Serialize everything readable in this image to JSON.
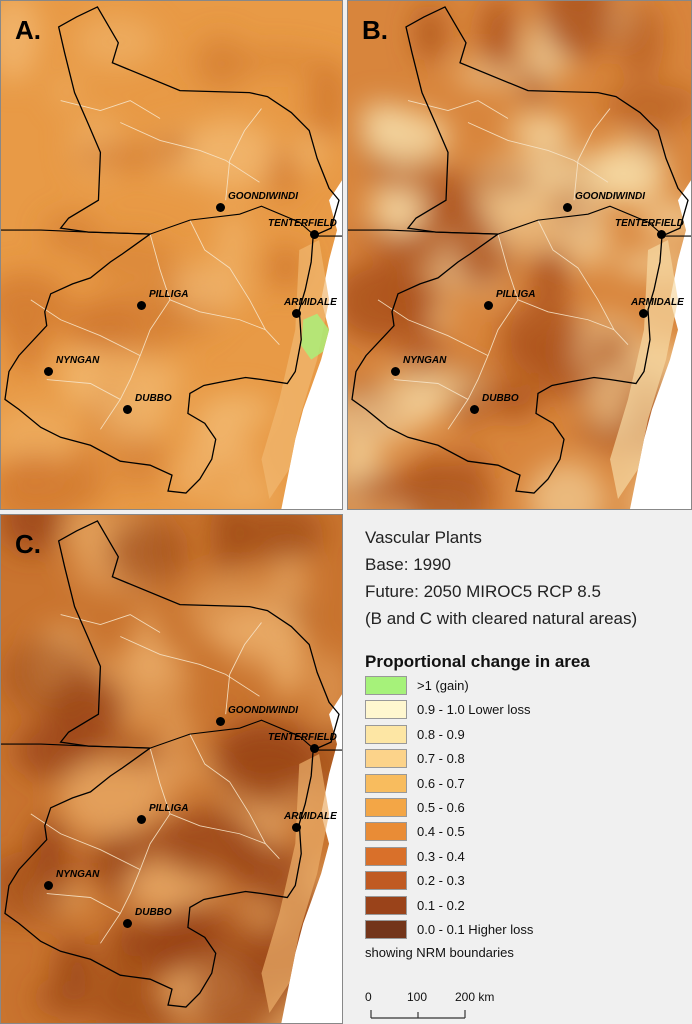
{
  "panels": {
    "a": {
      "letter": "A.",
      "map": "base",
      "colors": {
        "base": "#e89a46",
        "dark": "#d17a30",
        "light": "#f1b870"
      }
    },
    "b": {
      "letter": "B.",
      "map": "future",
      "colors": {
        "base": "#d8853c",
        "dark": "#a94f19",
        "light": "#f6d8a2"
      }
    },
    "c": {
      "letter": "C.",
      "map": "future",
      "colors": {
        "base": "#c9742f",
        "dark": "#9a4515",
        "light": "#ebae6a"
      }
    }
  },
  "towns": [
    {
      "id": "goondiwindi",
      "name": "GOONDIWINDI"
    },
    {
      "id": "tenterfield",
      "name": "TENTERFIELD"
    },
    {
      "id": "pilliga",
      "name": "PILLIGA"
    },
    {
      "id": "armidale",
      "name": "ARMIDALE"
    },
    {
      "id": "nyngan",
      "name": "NYNGAN"
    },
    {
      "id": "dubbo",
      "name": "DUBBO"
    }
  ],
  "info": {
    "line1": "Vascular Plants",
    "line2": "Base: 1990",
    "line3": "Future: 2050 MIROC5 RCP 8.5",
    "line4": "(B and C with cleared natural areas)"
  },
  "legend": {
    "title": "Proportional change in area",
    "items": [
      {
        "label": ">1 (gain)",
        "color": "#a6f27a"
      },
      {
        "label": "0.9 - 1.0 Lower loss",
        "color": "#fff7cf"
      },
      {
        "label": "0.8 - 0.9",
        "color": "#fde6a4"
      },
      {
        "label": "0.7 - 0.8",
        "color": "#fcd38a"
      },
      {
        "label": "0.6 - 0.7",
        "color": "#f8bc5e"
      },
      {
        "label": "0.5 - 0.6",
        "color": "#f3a646"
      },
      {
        "label": "0.4 - 0.5",
        "color": "#e98c36"
      },
      {
        "label": "0.3 - 0.4",
        "color": "#d9702a"
      },
      {
        "label": "0.2 - 0.3",
        "color": "#c05a22"
      },
      {
        "label": "0.1 - 0.2",
        "color": "#9a431a"
      },
      {
        "label": "0.0 - 0.1 Higher loss",
        "color": "#73351a"
      }
    ],
    "note": "showing NRM boundaries"
  },
  "scale": {
    "labels": [
      "0",
      "100",
      "200 km"
    ]
  }
}
